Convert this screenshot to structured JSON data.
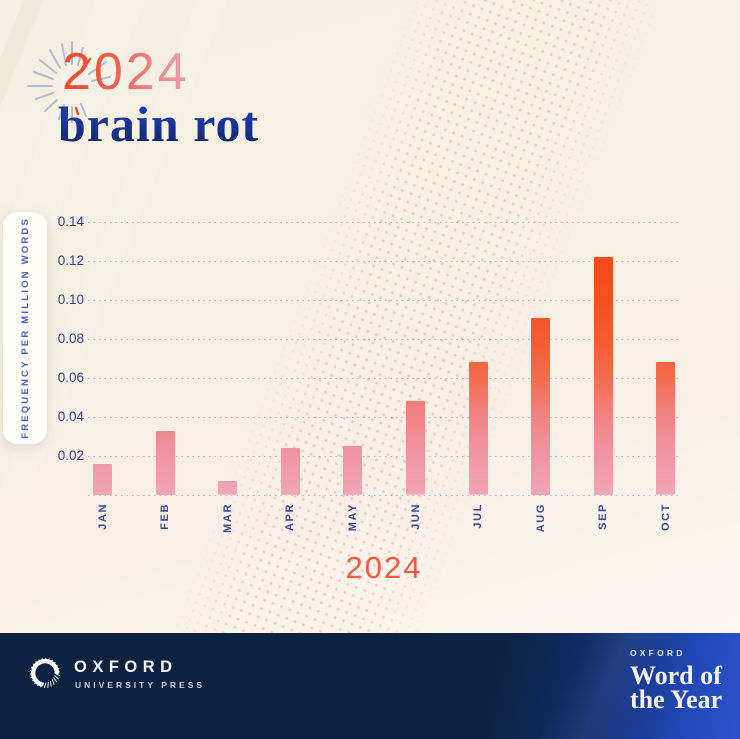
{
  "title": {
    "year": "2024",
    "word": "brain rot"
  },
  "chart_data": {
    "type": "bar",
    "categories": [
      "JAN",
      "FEB",
      "MAR",
      "APR",
      "MAY",
      "JUN",
      "JUL",
      "AUG",
      "SEP",
      "OCT"
    ],
    "values": [
      0.016,
      0.033,
      0.007,
      0.024,
      0.025,
      0.048,
      0.068,
      0.091,
      0.122,
      0.068
    ],
    "title": "brain rot",
    "xlabel": "2024",
    "ylabel": "FREQUENCY PER MILLION WORDS",
    "yticks": [
      0.02,
      0.04,
      0.06,
      0.08,
      0.1,
      0.12,
      0.14
    ],
    "ylim": [
      0,
      0.14
    ],
    "grid": "horizontal-dotted",
    "legend": "none",
    "bar_color_low": "#f3a6b4",
    "bar_color_high": "#f64716"
  },
  "footer": {
    "publisher_name": "OXFORD",
    "publisher_subtitle": "UNIVERSITY PRESS",
    "brand_kicker": "OXFORD",
    "brand_line1": "Word of",
    "brand_line2": "the Year"
  },
  "colors": {
    "background_cream": "#f5efe2",
    "accent_orange": "#f1472a",
    "accent_pink": "#f0a0ae",
    "word_navy": "#1b35a0",
    "axis_text": "#3b4a96",
    "footer_navy": "#0d2240",
    "footer_blue": "#2c53cb"
  }
}
